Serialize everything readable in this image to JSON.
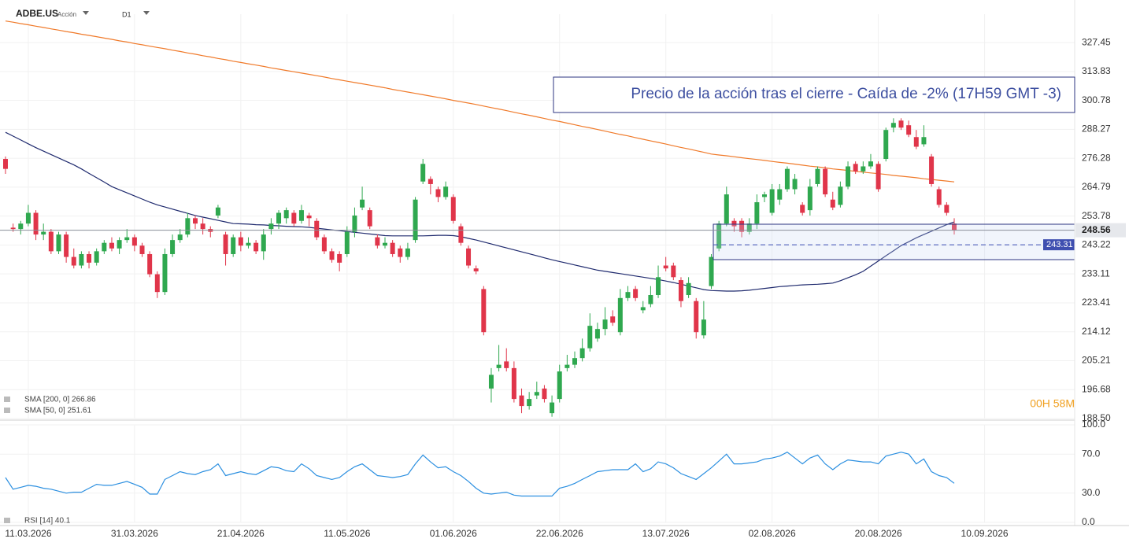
{
  "header": {
    "symbol": "ADBE.US",
    "asset_type": "Acción",
    "timeframe": "D1"
  },
  "chart_data": [
    {
      "type": "candlestick",
      "log_scale": true,
      "grid": true,
      "up_color": "#2fa84f",
      "down_color": "#e0354a",
      "ylim": [
        188.5,
        341.4
      ],
      "yticks": [
        327.45,
        313.83,
        300.78,
        288.27,
        276.28,
        264.79,
        253.78,
        243.22,
        233.11,
        223.41,
        214.12,
        205.21,
        196.68,
        {
          "value": 188.5,
          "label": "188.50"
        }
      ],
      "xtick_labels": [
        "11.03.2026",
        "31.03.2026",
        "21.04.2026",
        "11.05.2026",
        "01.06.2026",
        "22.06.2026",
        "13.07.2026",
        "02.08.2026",
        "20.08.2026",
        "10.09.2026"
      ],
      "annotation": "Precio de la acción tras el cierre - Caída de -2% (17H59 GMT -3)",
      "last_price": 248.56,
      "level": 243.31,
      "countdown": "00H 58M",
      "candles": [
        [
          276,
          277,
          270,
          272
        ],
        [
          249.5,
          251,
          248,
          249
        ],
        [
          249,
          252,
          247,
          251
        ],
        [
          251,
          258,
          250,
          255
        ],
        [
          255,
          256,
          245,
          247
        ],
        [
          247,
          251,
          245,
          248
        ],
        [
          248,
          249,
          240,
          241
        ],
        [
          241,
          248,
          240,
          247
        ],
        [
          247,
          248,
          237,
          239
        ],
        [
          239,
          242,
          235,
          236
        ],
        [
          236,
          241,
          235,
          240
        ],
        [
          240,
          241,
          235,
          237
        ],
        [
          237,
          242,
          236,
          241
        ],
        [
          241,
          245,
          240,
          244
        ],
        [
          244,
          246,
          241,
          242
        ],
        [
          242,
          246,
          240,
          245
        ],
        [
          245,
          249,
          244,
          246
        ],
        [
          246,
          247,
          241,
          243
        ],
        [
          243,
          244,
          239,
          240
        ],
        [
          240,
          241,
          232,
          233
        ],
        [
          233,
          234,
          225,
          227
        ],
        [
          227,
          242,
          226,
          240
        ],
        [
          240,
          247,
          239,
          245
        ],
        [
          245,
          249,
          244,
          247
        ],
        [
          247,
          255,
          246,
          253
        ],
        [
          253,
          254,
          249,
          251
        ],
        [
          251,
          253,
          247,
          249
        ],
        [
          249,
          250,
          246,
          248
        ],
        [
          254,
          258,
          253,
          257
        ],
        [
          247,
          248,
          236,
          240
        ],
        [
          240,
          247,
          239,
          246
        ],
        [
          246,
          248,
          241,
          243
        ],
        [
          243,
          246,
          242,
          244
        ],
        [
          244,
          245,
          240,
          241
        ],
        [
          241,
          249,
          238,
          247
        ],
        [
          249,
          253,
          247,
          251
        ],
        [
          251,
          256,
          249,
          255
        ],
        [
          253,
          257,
          251,
          256
        ],
        [
          255,
          256,
          250,
          251
        ],
        [
          252,
          258,
          251,
          256
        ],
        [
          254,
          255,
          250,
          253
        ],
        [
          252,
          253,
          245,
          246
        ],
        [
          246,
          247,
          240,
          241
        ],
        [
          241,
          242,
          237,
          238
        ],
        [
          240,
          241,
          234,
          237
        ],
        [
          240,
          250,
          239,
          248
        ],
        [
          248,
          257,
          246,
          254
        ],
        [
          257,
          265,
          256,
          260
        ],
        [
          256,
          257,
          249,
          250
        ],
        [
          246,
          247,
          242,
          243
        ],
        [
          243,
          246,
          242,
          244
        ],
        [
          244,
          245,
          239,
          240
        ],
        [
          242,
          243,
          237,
          239
        ],
        [
          239,
          244,
          238,
          242
        ],
        [
          245,
          261,
          244,
          260
        ],
        [
          267,
          276,
          266,
          274
        ],
        [
          268,
          269,
          262,
          266
        ],
        [
          264,
          265,
          259,
          261
        ],
        [
          261,
          267,
          260,
          265
        ],
        [
          261,
          262,
          251,
          252
        ],
        [
          250,
          251,
          243,
          244
        ],
        [
          242,
          243,
          235,
          236
        ],
        [
          235,
          236,
          233,
          234
        ],
        [
          228,
          229,
          213,
          214
        ],
        [
          197,
          203,
          193,
          201
        ],
        [
          203,
          210,
          202,
          204
        ],
        [
          205,
          209,
          202,
          203
        ],
        [
          203,
          205,
          193,
          194
        ],
        [
          195,
          197,
          190,
          192
        ],
        [
          192,
          196,
          191,
          194
        ],
        [
          195,
          199,
          194,
          196
        ],
        [
          197,
          198,
          193,
          194
        ],
        [
          190,
          195,
          189,
          193
        ],
        [
          194,
          204,
          193,
          202
        ],
        [
          203,
          207,
          202,
          204
        ],
        [
          204,
          208,
          203,
          206
        ],
        [
          206,
          212,
          205,
          209
        ],
        [
          209,
          220,
          208,
          216
        ],
        [
          212,
          217,
          211,
          215
        ],
        [
          215,
          222,
          213,
          218
        ],
        [
          219,
          221,
          216,
          217
        ],
        [
          214,
          228,
          213,
          225
        ],
        [
          225,
          229,
          224,
          227
        ],
        [
          228,
          229,
          224,
          225
        ],
        [
          221,
          224,
          220,
          222
        ],
        [
          223,
          229,
          222,
          226
        ],
        [
          226,
          236,
          225,
          232
        ],
        [
          236,
          239,
          234,
          235
        ],
        [
          236,
          237,
          231,
          232
        ],
        [
          231,
          232,
          222,
          224
        ],
        [
          226,
          232,
          225,
          230
        ],
        [
          224,
          225,
          212,
          214
        ],
        [
          213,
          224,
          212,
          218
        ],
        [
          229,
          240,
          228,
          239
        ],
        [
          242,
          252,
          241,
          251
        ],
        [
          251,
          265,
          250,
          262
        ],
        [
          252,
          253,
          248,
          250
        ],
        [
          252,
          253,
          246,
          248
        ],
        [
          248,
          253,
          247,
          251
        ],
        [
          251,
          262,
          249,
          259
        ],
        [
          261,
          263,
          259,
          262
        ],
        [
          255,
          266,
          254,
          264
        ],
        [
          260,
          266,
          258,
          264
        ],
        [
          264,
          273,
          263,
          272
        ],
        [
          264,
          270,
          262,
          268
        ],
        [
          258,
          259,
          254,
          255
        ],
        [
          256,
          268,
          254,
          265
        ],
        [
          266,
          273,
          265,
          272
        ],
        [
          272,
          273,
          261,
          262
        ],
        [
          260,
          263,
          256,
          257
        ],
        [
          258,
          267,
          257,
          265
        ],
        [
          265,
          275,
          264,
          273
        ],
        [
          274,
          275,
          270,
          271
        ],
        [
          271,
          275,
          270,
          273
        ],
        [
          273,
          278,
          272,
          275
        ],
        [
          274,
          275,
          263,
          264
        ],
        [
          276,
          289,
          275,
          288
        ],
        [
          289,
          293,
          287,
          291
        ],
        [
          292,
          293,
          288,
          289
        ],
        [
          290,
          292,
          285,
          286
        ],
        [
          285,
          288,
          280,
          281
        ],
        [
          282,
          290,
          281,
          285
        ],
        [
          277,
          278,
          265,
          266
        ],
        [
          264,
          265,
          257,
          258
        ],
        [
          258,
          259,
          254,
          255
        ],
        [
          251,
          253,
          247,
          248.56
        ]
      ],
      "series": [
        {
          "name": "SMA [200, 0] 266.86",
          "color": "#f07a2a",
          "values": [
            338,
            337.4,
            336.7,
            336.1,
            335.4,
            334.8,
            334.1,
            333.5,
            332.8,
            332.2,
            331.5,
            330.9,
            330.3,
            329.6,
            329.0,
            328.3,
            327.7,
            327.0,
            326.4,
            325.7,
            325.1,
            324.5,
            323.8,
            323.2,
            322.5,
            321.9,
            321.2,
            320.6,
            319.9,
            319.3,
            318.6,
            318.0,
            317.4,
            316.8,
            316.2,
            315.5,
            314.9,
            314.3,
            313.7,
            313.1,
            312.5,
            311.9,
            311.3,
            310.6,
            310.0,
            309.4,
            308.8,
            308.2,
            307.6,
            307.0,
            306.4,
            305.7,
            305.1,
            304.5,
            303.9,
            303.3,
            302.7,
            302.1,
            301.5,
            300.8,
            300.2,
            299.6,
            299.0,
            298.3,
            297.6,
            297.0,
            296.3,
            295.6,
            294.9,
            294.3,
            293.6,
            292.9,
            292.2,
            291.6,
            290.9,
            290.2,
            289.5,
            288.9,
            288.2,
            287.5,
            286.8,
            286.1,
            285.5,
            284.8,
            284.1,
            283.4,
            282.8,
            282.1,
            281.4,
            280.7,
            280.1,
            279.4,
            278.7,
            278.0,
            277.6,
            277.3,
            276.9,
            276.5,
            276.1,
            275.8,
            275.4,
            275.0,
            274.6,
            274.3,
            273.9,
            273.5,
            273.1,
            272.8,
            272.4,
            272.0,
            271.7,
            271.4,
            271.0,
            270.7,
            270.4,
            270.1,
            269.8,
            269.4,
            269.1,
            268.8,
            268.5,
            268.1,
            267.8,
            267.5,
            267.2,
            266.86
          ]
        },
        {
          "name": "SMA [50, 0] 251.61",
          "color": "#1f2a6e",
          "values": [
            287,
            285.4,
            283.8,
            282.2,
            280.6,
            279.2,
            277.8,
            276.4,
            275,
            273.6,
            272,
            270.2,
            268.5,
            266.8,
            265,
            263.8,
            262.6,
            261.4,
            260.2,
            259,
            258,
            257.2,
            256.4,
            255.6,
            254.8,
            254,
            253.4,
            252.8,
            252.2,
            251.6,
            251,
            250.9,
            250.8,
            250.6,
            250.5,
            250.3,
            250.2,
            250,
            249.9,
            249.8,
            249.6,
            249.3,
            249,
            248.7,
            248.4,
            248.1,
            247.8,
            247.5,
            247.2,
            246.9,
            246.6,
            246.5,
            246.5,
            246.5,
            246.5,
            246.5,
            246.6,
            246.7,
            246.7,
            246.6,
            246.2,
            245.6,
            245,
            244.3,
            243.6,
            242.9,
            242.2,
            241.5,
            240.8,
            240.1,
            239.4,
            238.7,
            238,
            237.4,
            236.8,
            236.2,
            235.6,
            235,
            234.4,
            234,
            233.6,
            233.2,
            232.8,
            232.4,
            232,
            231.6,
            231.2,
            230.7,
            230.2,
            229.6,
            229,
            228.4,
            227.8,
            227.5,
            227.4,
            227.3,
            227.3,
            227.4,
            227.6,
            227.9,
            228.2,
            228.5,
            228.8,
            229,
            229.2,
            229.4,
            229.5,
            229.6,
            229.8,
            230,
            230.8,
            231.8,
            232.8,
            234,
            235.8,
            237.6,
            239.4,
            241.2,
            243,
            244.4,
            245.8,
            247,
            248.2,
            249.4,
            250.6,
            251.61
          ]
        }
      ]
    },
    {
      "type": "line",
      "ylim": [
        0,
        100
      ],
      "yticks": [
        {
          "value": 100,
          "label": "100.0"
        },
        {
          "value": 70,
          "label": "70.0"
        },
        {
          "value": 30,
          "label": "30.0"
        },
        {
          "value": 0,
          "label": "0.0"
        }
      ],
      "series": [
        {
          "name": "RSI [14] 40.1",
          "color": "#2b8fe0",
          "values": [
            46,
            34,
            36,
            38,
            37,
            35,
            34,
            32,
            30,
            31,
            31,
            35,
            39,
            38,
            38,
            40,
            42,
            39,
            36,
            29,
            29,
            44,
            48,
            52,
            50,
            49,
            52,
            54,
            60,
            48,
            50,
            52,
            50,
            49,
            53,
            57,
            56,
            53,
            52,
            60,
            55,
            48,
            46,
            44,
            46,
            52,
            57,
            60,
            54,
            48,
            47,
            46,
            47,
            49,
            60,
            69,
            62,
            56,
            57,
            52,
            48,
            42,
            35,
            30,
            29,
            30,
            31,
            28,
            27,
            27,
            27,
            27,
            27,
            35,
            37,
            40,
            44,
            48,
            52,
            53,
            54,
            54,
            54,
            60,
            52,
            55,
            62,
            60,
            56,
            50,
            47,
            44,
            50,
            56,
            63,
            70,
            60,
            60,
            61,
            62,
            65,
            66,
            68,
            72,
            66,
            60,
            66,
            69,
            60,
            54,
            60,
            64,
            63,
            62,
            62,
            60,
            68,
            70,
            72,
            70,
            60,
            65,
            52,
            48,
            46,
            40.1
          ]
        }
      ]
    }
  ]
}
